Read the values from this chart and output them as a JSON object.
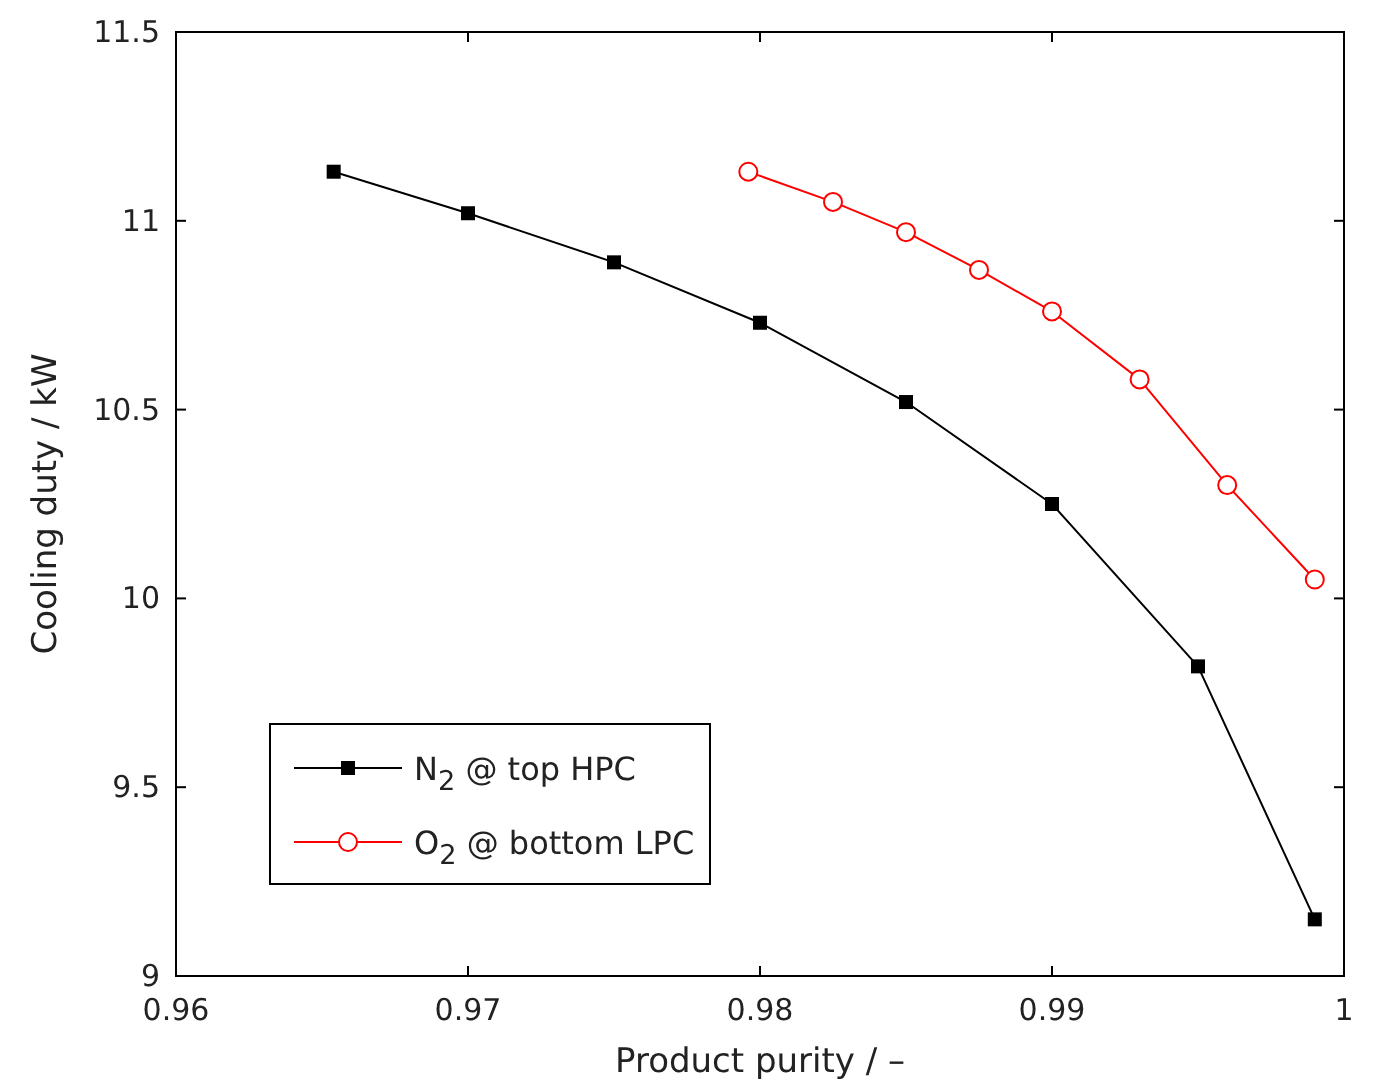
{
  "chart_data": {
    "type": "line",
    "xlabel": "Product purity  /  –",
    "ylabel": "Cooling duty  /  kW",
    "xlim": [
      0.96,
      1
    ],
    "xticks": [
      0.96,
      0.97,
      0.98,
      0.99,
      1
    ],
    "ylim": [
      9,
      11.5
    ],
    "yticks": [
      9,
      9.5,
      10,
      10.5,
      11,
      11.5
    ],
    "grid": false,
    "legend": "bottom left",
    "line_style": "solid",
    "series": [
      {
        "name": "N$_{2}$ @ top HPC",
        "color": "#000000",
        "marker": "square",
        "x": [
          0.9654,
          0.97,
          0.975,
          0.98,
          0.985,
          0.99,
          0.995,
          0.999
        ],
        "values": [
          11.13,
          11.02,
          10.89,
          10.73,
          10.52,
          10.25,
          9.82,
          9.15
        ]
      },
      {
        "name": "O$_{2}$ @ bottom LPC",
        "color": "#ff0000",
        "marker": "circle",
        "x": [
          0.9796,
          0.9825,
          0.985,
          0.9875,
          0.99,
          0.993,
          0.996,
          0.999
        ],
        "values": [
          11.13,
          11.05,
          10.97,
          10.87,
          10.76,
          10.58,
          10.3,
          10.05
        ]
      }
    ]
  }
}
